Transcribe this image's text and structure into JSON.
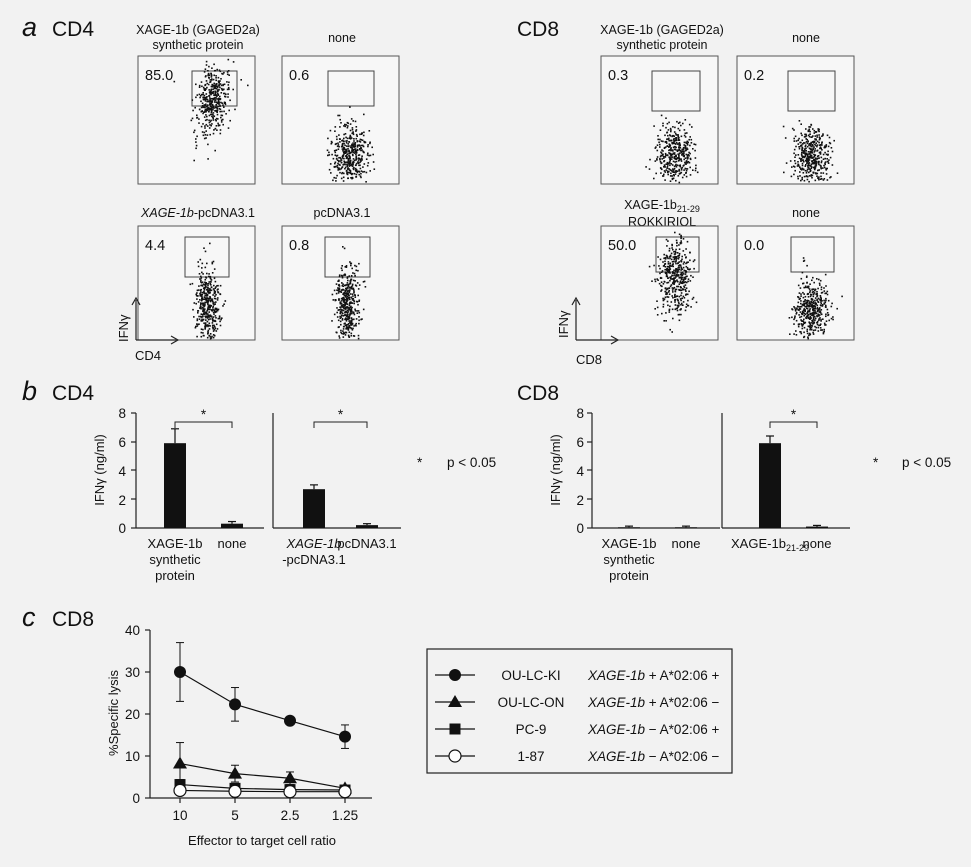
{
  "panels": {
    "a": {
      "letter": "a",
      "cd4": {
        "heading": "CD4",
        "axis_y": "IFNγ",
        "axis_x": "CD4",
        "plots": [
          {
            "caption_line1": "XAGE-1b (GAGED2a)",
            "caption_line2": "synthetic protein",
            "gate_pct": "85.0",
            "cloud": "high"
          },
          {
            "caption_line1": "none",
            "caption_line2": "",
            "gate_pct": "0.6",
            "cloud": "low"
          },
          {
            "caption_line1": "XAGE-1b-pcDNA3.1",
            "caption_line1_italic": "XAGE-1b",
            "caption_line1_rest": "-pcDNA3.1",
            "caption_line2": "",
            "gate_pct": "4.4",
            "cloud": "column"
          },
          {
            "caption_line1": "pcDNA3.1",
            "caption_line2": "",
            "gate_pct": "0.8",
            "cloud": "column"
          }
        ]
      },
      "cd8": {
        "heading": "CD8",
        "axis_y": "IFNγ",
        "axis_x": "CD8",
        "plots": [
          {
            "caption_line1": "XAGE-1b (GAGED2a)",
            "caption_line2": "synthetic protein",
            "gate_pct": "0.3",
            "cloud": "low"
          },
          {
            "caption_line1": "none",
            "caption_line2": "",
            "gate_pct": "0.2",
            "cloud": "low"
          },
          {
            "caption_line1_base": "XAGE-1b",
            "caption_line1_sub": "21-29",
            "caption_line2": "RQKKIRIQL",
            "gate_pct": "50.0",
            "cloud": "mid"
          },
          {
            "caption_line1": "none",
            "caption_line2": "",
            "gate_pct": "0.0",
            "cloud": "low"
          }
        ]
      }
    },
    "b": {
      "letter": "b",
      "cd4": {
        "heading": "CD4",
        "ylabel": "IFNγ (ng/ml)",
        "ylim": [
          0,
          8
        ],
        "yticks": [
          "8",
          "6",
          "4",
          "2",
          "0"
        ],
        "significance_note": "p < 0.05",
        "star": "*"
      },
      "cd8": {
        "heading": "CD8",
        "ylabel": "IFNγ (ng/ml)",
        "ylim": [
          0,
          8
        ],
        "yticks": [
          "8",
          "6",
          "4",
          "2",
          "0"
        ],
        "significance_note": "p < 0.05",
        "star": "*"
      }
    },
    "c": {
      "letter": "c",
      "heading": "CD8"
    }
  },
  "chart_data": [
    {
      "type": "bar",
      "id": "b-cd4-left",
      "categories": [
        "XAGE-1b synthetic protein",
        "none"
      ],
      "category_lines": [
        [
          "XAGE-1b",
          "synthetic",
          "protein"
        ],
        [
          "none"
        ]
      ],
      "values": [
        5.9,
        0.3
      ],
      "errors": [
        1.0,
        0.15
      ],
      "ylabel": "IFNγ (ng/ml)",
      "ylim": [
        0,
        8
      ],
      "significant": true
    },
    {
      "type": "bar",
      "id": "b-cd4-right",
      "categories": [
        "XAGE-1b -pcDNA3.1",
        "pcDNA3.1"
      ],
      "category_lines": [
        [
          "XAGE-1b",
          "-pcDNA3.1"
        ],
        [
          "pcDNA3.1"
        ]
      ],
      "values": [
        2.7,
        0.2
      ],
      "errors": [
        0.3,
        0.1
      ],
      "ylim": [
        0,
        8
      ],
      "significant": true
    },
    {
      "type": "bar",
      "id": "b-cd8-left",
      "categories": [
        "XAGE-1b synthetic protein",
        "none"
      ],
      "category_lines": [
        [
          "XAGE-1b",
          "synthetic",
          "protein"
        ],
        [
          "none"
        ]
      ],
      "values": [
        0.05,
        0.05
      ],
      "errors": [
        0.08,
        0.08
      ],
      "ylabel": "IFNγ (ng/ml)",
      "ylim": [
        0,
        8
      ],
      "significant": false
    },
    {
      "type": "bar",
      "id": "b-cd8-right",
      "categories": [
        "XAGE-1b21-29",
        "none"
      ],
      "category_lines": [
        [
          "XAGE-1b21-29"
        ],
        [
          "none"
        ]
      ],
      "category0_base": "XAGE-1b",
      "category0_sub": "21-29",
      "values": [
        5.9,
        0.1
      ],
      "errors": [
        0.5,
        0.08
      ],
      "ylim": [
        0,
        8
      ],
      "significant": true
    },
    {
      "type": "line",
      "id": "c-lysis",
      "title": "CD8",
      "xlabel": "Effector to target cell ratio",
      "ylabel": "%Specific lysis",
      "x": [
        "10",
        "5",
        "2.5",
        "1.25"
      ],
      "ylim": [
        0,
        40
      ],
      "yticks": [
        "40",
        "30",
        "20",
        "10",
        "0"
      ],
      "series": [
        {
          "name": "OU-LC-KI",
          "marker": "circle-filled",
          "values": [
            30,
            22.3,
            18.4,
            14.6
          ],
          "errors": [
            7,
            4,
            0.6,
            2.8
          ],
          "legend_gene": "XAGE-1b",
          "legend_gene_sign": "+",
          "legend_hla": "A*02:06",
          "legend_hla_sign": "+"
        },
        {
          "name": "OU-LC-ON",
          "marker": "triangle-filled",
          "values": [
            8.2,
            5.8,
            4.7,
            2.3
          ],
          "errors": [
            5,
            2,
            1.5,
            0.6
          ],
          "legend_gene": "XAGE-1b",
          "legend_gene_sign": "+",
          "legend_hla": "A*02:06",
          "legend_hla_sign": "−"
        },
        {
          "name": "PC-9",
          "marker": "square-filled",
          "values": [
            3.2,
            2.3,
            2.0,
            1.9
          ],
          "errors": [
            1.2,
            0.6,
            0.5,
            0.5
          ],
          "legend_gene": "XAGE-1b",
          "legend_gene_sign": "−",
          "legend_hla": "A*02:06",
          "legend_hla_sign": "+"
        },
        {
          "name": "1-87",
          "marker": "circle-open",
          "values": [
            1.8,
            1.6,
            1.5,
            1.5
          ],
          "errors": [
            0.6,
            0.4,
            0.3,
            0.3
          ],
          "legend_gene": "XAGE-1b",
          "legend_gene_sign": "−",
          "legend_hla": "A*02:06",
          "legend_hla_sign": "−"
        }
      ]
    }
  ]
}
